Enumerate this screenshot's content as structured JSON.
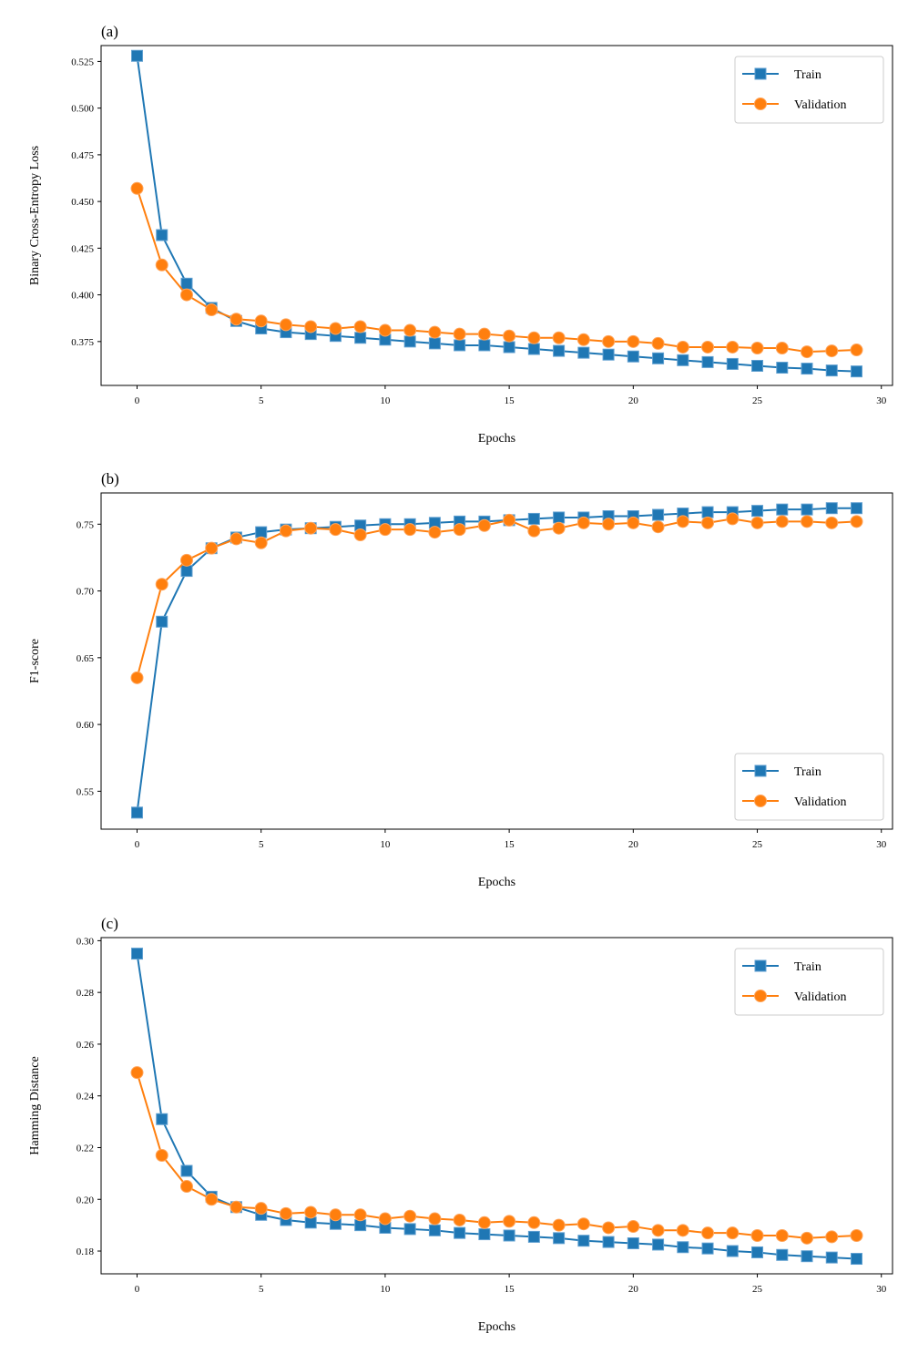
{
  "chart_data": [
    {
      "type": "line",
      "panel_label": "(a)",
      "xlabel": "Epochs",
      "ylabel": "Binary Cross-Entropy Loss",
      "xlim": [
        -1.45,
        30.45
      ],
      "ylim": [
        0.3515,
        0.5335
      ],
      "xticks": [
        0,
        5,
        10,
        15,
        20,
        25,
        30
      ],
      "xtick_labels": [
        "0",
        "5",
        "10",
        "15",
        "20",
        "25",
        "30"
      ],
      "yticks": [
        0.375,
        0.4,
        0.425,
        0.45,
        0.475,
        0.5,
        0.525
      ],
      "ytick_labels": [
        "0.375",
        "0.400",
        "0.425",
        "0.450",
        "0.475",
        "0.500",
        "0.525"
      ],
      "legend_position": "top-right",
      "x": [
        0,
        1,
        2,
        3,
        4,
        5,
        6,
        7,
        8,
        9,
        10,
        11,
        12,
        13,
        14,
        15,
        16,
        17,
        18,
        19,
        20,
        21,
        22,
        23,
        24,
        25,
        26,
        27,
        28,
        29
      ],
      "series": [
        {
          "name": "Train",
          "color": "#1f77b4",
          "marker": "square",
          "values": [
            0.528,
            0.432,
            0.406,
            0.393,
            0.386,
            0.382,
            0.38,
            0.379,
            0.378,
            0.377,
            0.376,
            0.375,
            0.374,
            0.373,
            0.373,
            0.372,
            0.371,
            0.37,
            0.369,
            0.368,
            0.367,
            0.366,
            0.365,
            0.364,
            0.363,
            0.362,
            0.361,
            0.3605,
            0.3595,
            0.359
          ]
        },
        {
          "name": "Validation",
          "color": "#ff7f0e",
          "marker": "circle",
          "values": [
            0.457,
            0.416,
            0.4,
            0.392,
            0.387,
            0.386,
            0.384,
            0.383,
            0.382,
            0.383,
            0.381,
            0.381,
            0.38,
            0.379,
            0.379,
            0.378,
            0.377,
            0.377,
            0.376,
            0.375,
            0.375,
            0.374,
            0.372,
            0.372,
            0.372,
            0.3715,
            0.3715,
            0.3695,
            0.37,
            0.3705
          ]
        }
      ]
    },
    {
      "type": "line",
      "panel_label": "(b)",
      "xlabel": "Epochs",
      "ylabel": "F1-score",
      "xlim": [
        -1.45,
        30.45
      ],
      "ylim": [
        0.5216,
        0.7734
      ],
      "xticks": [
        0,
        5,
        10,
        15,
        20,
        25,
        30
      ],
      "xtick_labels": [
        "0",
        "5",
        "10",
        "15",
        "20",
        "25",
        "30"
      ],
      "yticks": [
        0.55,
        0.6,
        0.65,
        0.7,
        0.75
      ],
      "ytick_labels": [
        "0.55",
        "0.60",
        "0.65",
        "0.70",
        "0.75"
      ],
      "legend_position": "bottom-right",
      "x": [
        0,
        1,
        2,
        3,
        4,
        5,
        6,
        7,
        8,
        9,
        10,
        11,
        12,
        13,
        14,
        15,
        16,
        17,
        18,
        19,
        20,
        21,
        22,
        23,
        24,
        25,
        26,
        27,
        28,
        29
      ],
      "series": [
        {
          "name": "Train",
          "color": "#1f77b4",
          "marker": "square",
          "values": [
            0.534,
            0.677,
            0.715,
            0.732,
            0.74,
            0.744,
            0.746,
            0.747,
            0.748,
            0.749,
            0.75,
            0.75,
            0.751,
            0.752,
            0.752,
            0.753,
            0.754,
            0.755,
            0.755,
            0.756,
            0.756,
            0.757,
            0.758,
            0.759,
            0.759,
            0.76,
            0.761,
            0.761,
            0.762,
            0.762
          ]
        },
        {
          "name": "Validation",
          "color": "#ff7f0e",
          "marker": "circle",
          "values": [
            0.635,
            0.705,
            0.723,
            0.732,
            0.739,
            0.736,
            0.745,
            0.747,
            0.746,
            0.742,
            0.746,
            0.746,
            0.744,
            0.746,
            0.749,
            0.753,
            0.745,
            0.747,
            0.751,
            0.75,
            0.751,
            0.748,
            0.752,
            0.751,
            0.754,
            0.751,
            0.752,
            0.752,
            0.751,
            0.752
          ]
        }
      ]
    },
    {
      "type": "line",
      "panel_label": "(c)",
      "xlabel": "Epochs",
      "ylabel": "Hamming Distance",
      "xlim": [
        -1.45,
        30.45
      ],
      "ylim": [
        0.1712,
        0.3012
      ],
      "xticks": [
        0,
        5,
        10,
        15,
        20,
        25,
        30
      ],
      "xtick_labels": [
        "0",
        "5",
        "10",
        "15",
        "20",
        "25",
        "30"
      ],
      "yticks": [
        0.18,
        0.2,
        0.22,
        0.24,
        0.26,
        0.28,
        0.3
      ],
      "ytick_labels": [
        "0.18",
        "0.20",
        "0.22",
        "0.24",
        "0.26",
        "0.28",
        "0.30"
      ],
      "legend_position": "top-right",
      "x": [
        0,
        1,
        2,
        3,
        4,
        5,
        6,
        7,
        8,
        9,
        10,
        11,
        12,
        13,
        14,
        15,
        16,
        17,
        18,
        19,
        20,
        21,
        22,
        23,
        24,
        25,
        26,
        27,
        28,
        29
      ],
      "series": [
        {
          "name": "Train",
          "color": "#1f77b4",
          "marker": "square",
          "values": [
            0.295,
            0.231,
            0.211,
            0.201,
            0.197,
            0.194,
            0.192,
            0.191,
            0.1905,
            0.19,
            0.189,
            0.1885,
            0.188,
            0.187,
            0.1865,
            0.186,
            0.1855,
            0.185,
            0.184,
            0.1835,
            0.183,
            0.1825,
            0.1815,
            0.181,
            0.18,
            0.1795,
            0.1785,
            0.178,
            0.1775,
            0.177
          ]
        },
        {
          "name": "Validation",
          "color": "#ff7f0e",
          "marker": "circle",
          "values": [
            0.249,
            0.217,
            0.205,
            0.2,
            0.197,
            0.1965,
            0.1945,
            0.195,
            0.194,
            0.194,
            0.1925,
            0.1935,
            0.1925,
            0.192,
            0.191,
            0.1915,
            0.191,
            0.19,
            0.1905,
            0.189,
            0.1895,
            0.188,
            0.188,
            0.187,
            0.187,
            0.186,
            0.186,
            0.185,
            0.1855,
            0.186
          ]
        }
      ]
    }
  ]
}
